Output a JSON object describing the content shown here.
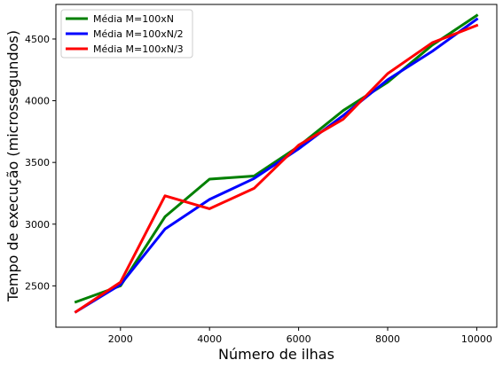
{
  "chart_data": {
    "type": "line",
    "title": "",
    "xlabel": "Número de ilhas",
    "ylabel": "Tempo de execução (microssegundos)",
    "xlim": [
      550,
      10450
    ],
    "ylim": [
      2165,
      4780
    ],
    "xticks": [
      2000,
      4000,
      6000,
      8000,
      10000
    ],
    "yticks": [
      2500,
      3000,
      3500,
      4000,
      4500
    ],
    "grid": false,
    "legend_position": "upper-left",
    "x": [
      1000,
      2000,
      3000,
      4000,
      5000,
      6000,
      7000,
      8000,
      9000,
      10000
    ],
    "series": [
      {
        "name": "Média M=100xN",
        "color": "#008000",
        "values": [
          2370,
          2500,
          3060,
          3365,
          3390,
          3630,
          3920,
          4150,
          4450,
          4690
        ]
      },
      {
        "name": "Média M=100xN/2",
        "color": "#0000ff",
        "values": [
          2290,
          2510,
          2960,
          3200,
          3370,
          3610,
          3880,
          4170,
          4400,
          4660
        ]
      },
      {
        "name": "Média M=100xN/3",
        "color": "#ff0000",
        "values": [
          2290,
          2530,
          3230,
          3125,
          3290,
          3640,
          3850,
          4220,
          4470,
          4610
        ]
      }
    ]
  }
}
